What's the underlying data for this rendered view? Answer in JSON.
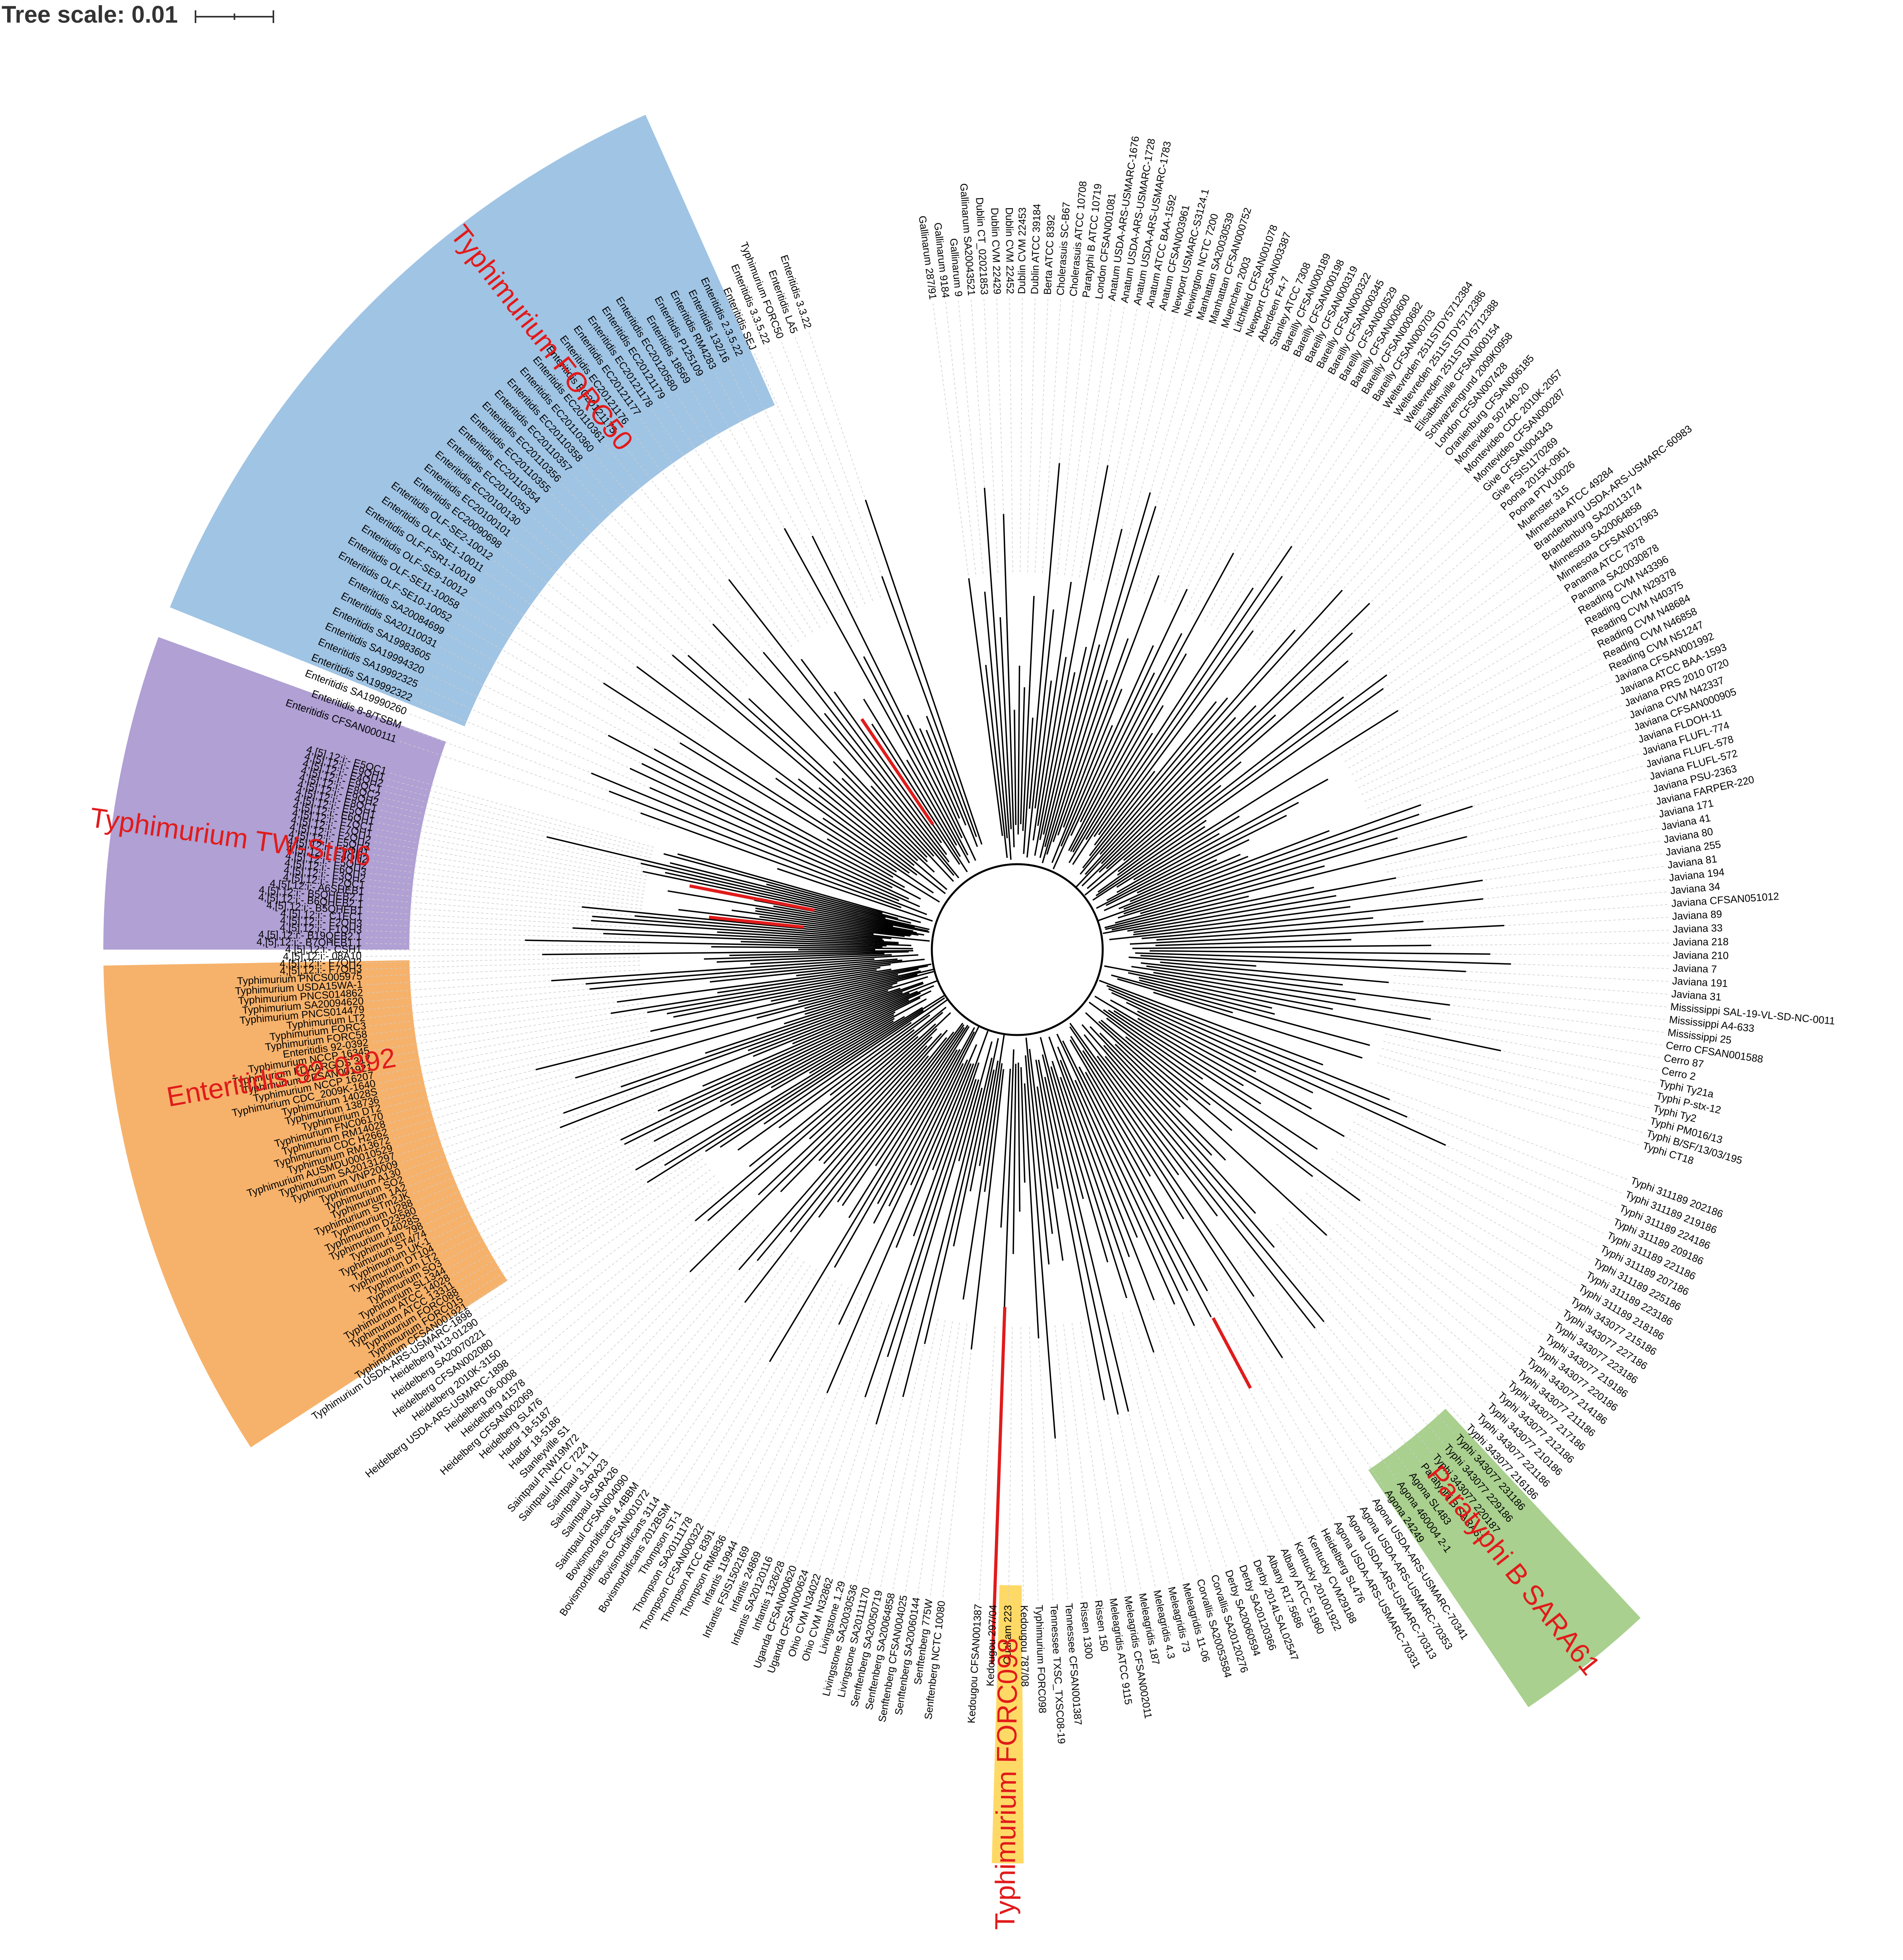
{
  "tree_scale": {
    "label": "Tree scale: 0.01"
  },
  "colors": {
    "blue_clade": "#a0c4e4",
    "purple_clade": "#b0a0d4",
    "orange_clade": "#f6b26b",
    "yellow_clade": "#ffd966",
    "green_clade": "#a9d08e",
    "highlight_branch": "#e11b1b",
    "branch": "#000000",
    "guide": "#cccccc"
  },
  "clade_labels": [
    {
      "text": "Typhimurium FORC50",
      "color": "#e11b1b"
    },
    {
      "text": "Typhimurium TW-Stm6",
      "color": "#e11b1b"
    },
    {
      "text": "Enteritidis 92-0392",
      "color": "#e11b1b"
    },
    {
      "text": "Typhimurium FORC098",
      "color": "#e11b1b"
    },
    {
      "text": "Paratyphi B SARA61",
      "color": "#e11b1b"
    }
  ],
  "sector_leaves": [
    {
      "region": "upper-right",
      "names": [
        "Gallinarum 287/91",
        "Gallinarum 9184",
        "Gallinarum 9",
        "Gallinarum SA20043521",
        "Dublin CT_02021853",
        "Dublin CVM 22429",
        "Dublin CVM 22452",
        "Dublin CVM 22453",
        "Dublin ATCC 39184",
        "Berta ATCC 8392",
        "Cholerasuis SC-B67",
        "Cholerasuis ATCC 10708",
        "Paratyphi B ATCC 10719",
        "London CFSAN001081",
        "Anatum USDA-ARS-USMARC-1676",
        "Anatum USDA-ARS-USMARC-1728",
        "Anatum USDA-ARS-USMARC-1783",
        "Anatum ATCC BAA-1592",
        "Anatum CFSAN003961",
        "Newport USMARC-S3124.1",
        "Newington NCTC 7200",
        "Manhattan SA20030539",
        "Manhattan CFSAN000752",
        "Muenchen 2003",
        "Litchfield CFSAN001078",
        "Newport CFSAN003387",
        "Aberdeen F4-7",
        "Stanley ATCC 7308",
        "Bareilly CFSAN000189",
        "Bareilly CFSAN000198",
        "Bareilly CFSAN000319",
        "Bareilly CFSAN000322",
        "Bareilly CFSAN000345",
        "Bareilly CFSAN000529",
        "Bareilly CFSAN000600",
        "Bareilly CFSAN000682",
        "Bareilly CFSAN000703",
        "Weltevreden 2511STDY5712384",
        "Weltevreden 2511STDY5712386",
        "Weltevreden 2511STDY5712388",
        "Elisabethville CFSAN000154",
        "Schwarzengrund 2009K0958",
        "London CFSAN007428",
        "Oranienburg CFSAN006185",
        "Montevideo 507440-20",
        "Montevideo CDC 2010K-2057",
        "Montevideo CFSAN000287",
        "Give CFSAN004343",
        "Give FSIS1170269",
        "Poona 2015K-0961",
        "Poona PTVU0026",
        "Muenster 315",
        "Minnesota ATCC 49284",
        "Brandenburg USDA-ARS-USMARC-60983",
        "Brandenburg SA20113174",
        "Minnesota SA20064858",
        "Minnesota CFSAN017963",
        "Panama ATCC 7378",
        "Panama SA20030878",
        "Reading CVM N43396",
        "Reading CVM N29378",
        "Reading CVM N40375",
        "Reading CVM N48684",
        "Reading CVM N46858",
        "Reading CVM N51247",
        "Javiana CFSAN001992",
        "Javiana ATCC BAA-1593",
        "Javiana PRS 2010 0720",
        "Javiana CVM N42337",
        "Javiana CFSAN000905",
        "Javiana FLDOH-11",
        "Javiana FLUFL-774",
        "Javiana FLUFL-578",
        "Javiana FLUFL-572",
        "Javiana PSU-2363",
        "Javiana FARPER-220",
        "Javiana 171",
        "Javiana 41",
        "Javiana 80",
        "Javiana 255",
        "Javiana 81",
        "Javiana 194",
        "Javiana 34",
        "Javiana CFSAN051012",
        "Javiana 89",
        "Javiana 33",
        "Javiana 218",
        "Javiana 210",
        "Javiana 7",
        "Javiana 191",
        "Javiana 31",
        "Mississippi SAL-19-VL-SD-NC-0011",
        "Mississippi A4-633",
        "Mississippi 25",
        "Cerro CFSAN001588",
        "Cerro 87",
        "Cerro 2",
        "Typhi Ty21a",
        "Typhi P-stx-12",
        "Typhi Ty2",
        "Typhi PM016/13",
        "Typhi B/SF/13/03/195",
        "Typhi CT18"
      ]
    },
    {
      "region": "lower-right",
      "names": [
        "Typhi 311189 202186",
        "Typhi 311189 219186",
        "Typhi 311189 224186",
        "Typhi 311189 209186",
        "Typhi 311189 221186",
        "Typhi 311189 207186",
        "Typhi 311189 225186",
        "Typhi 311189 223186",
        "Typhi 311189 218186",
        "Typhi 343077 215186",
        "Typhi 343077 227186",
        "Typhi 343077 223186",
        "Typhi 343077 219186",
        "Typhi 343077 220186",
        "Typhi 343077 214186",
        "Typhi 343077 211186",
        "Typhi 343077 217186",
        "Typhi 343077 212186",
        "Typhi 343077 210186",
        "Typhi 343077 221186",
        "Typhi 343077 216186",
        "Typhi 343077 231186",
        "Typhi 343077 229186",
        "Typhi 343077 220187",
        "Paratyphi B SARA61",
        "Agona SL483",
        "Agona 460004 2-1",
        "Agona 24249",
        "Agona USDA-ARS-USMARC-70341",
        "Agona USDA-ARS-USMARC-70353",
        "Agona USDA-ARS-USMARC-70313",
        "Agona USDA-ARS-USMARC-70331",
        "Heidelberg SL476",
        "Kentucky CVM29188",
        "Kentucky 201001922",
        "Albany ATCC 51960",
        "Albany R17.5686",
        "Derby 2014LSAL02547",
        "Derby SA20120366",
        "Derby SA20060594",
        "Corvallis SA20120276",
        "Corvallis SA20053584",
        "Meleagridis 11-06",
        "Meleagridis 73",
        "Meleagridis 4.3",
        "Meleagridis 187",
        "Meleagridis CFSAN002011",
        "Meleagridis ATCC 9115",
        "Rissen 150",
        "Rissen 1300",
        "Tennessee CFSAN001387",
        "Tennessee TXSC_TXSC08-19",
        "Typhimurium FORC098",
        "Kedougou 787/08",
        "Ouakam 223",
        "Kedougou 297/04",
        "Kedougou CFSAN001387"
      ]
    },
    {
      "region": "lower-left",
      "names": [
        "Senftenberg NCTC 10080",
        "Senftenberg 775W",
        "Senftenberg SA20060144",
        "Senftenberg CFSAN004025",
        "Senftenberg SA20064858",
        "Senftenberg SA20050719",
        "Livingstone SA20111170",
        "Livingstone SA20030536",
        "Livingstone 1.29",
        "Ohio CVM N32862",
        "Ohio CVM N34022",
        "Uganda CFSAN000624",
        "Uganda CFSAN000620",
        "Infantis 1326/28",
        "Infantis SA20120116",
        "Infantis 24869",
        "Infantis FSIS1502169",
        "Infantis 119944",
        "Thompson RM6836",
        "Thompson ATCC 8391",
        "Thompson CFSAN000322",
        "Thompson SA20111178",
        "Thompson ST-1",
        "Bovismorbificans 2012BSM",
        "Bovismorbificans 3114",
        "Bovismorbificans CFSAN001072",
        "Bovismorbificans 4.4BBM",
        "Saintpaul CFSAN004090",
        "Saintpaul SARA26",
        "Saintpaul SARA23",
        "Saintpaul 3.1.11",
        "Saintpaul NCTC 7224",
        "Saintpaul FNW19M72",
        "Stanleyville S1",
        "Hadar 18-5186",
        "Hadar 18-5187",
        "Heidelberg SL476",
        "Heidelberg CFSAN002069",
        "Heidelberg 41578",
        "Heidelberg 06-0008",
        "Heidelberg USDA-ARS-USMARC-1898",
        "Heidelberg 2010K-3150",
        "Heidelberg CFSAN002080",
        "Heidelberg SA20070221",
        "Heidelberg N13-01290"
      ]
    },
    {
      "region": "left-orange",
      "names": [
        "Typhimurium USDA-ARS-USMARC-1898",
        "Typhimurium CFSAN001921",
        "Typhimurium FORC015",
        "Typhimurium FORC088",
        "Typhimurium ATCC 13311",
        "Typhimurium ATCC 14028",
        "Typhimurium SL1344",
        "Typhimurium SO3",
        "Typhimurium LT2",
        "Typhimurium DT104",
        "Typhimurium UK-1",
        "Typhimurium ST4/74",
        "Typhimurium 798",
        "Typhimurium 14028S",
        "Typhimurium D23580",
        "Typhimurium U288",
        "Typhimurium STm2JK",
        "Typhimurium 1A2",
        "Typhimurium SO2",
        "Typhimurium A130",
        "Typhimurium VNP20009",
        "Typhimurium SA20131297",
        "Typhimurium AUSMDU00010529",
        "Typhimurium RM13672",
        "Typhimurium CDC H2662",
        "Typhimurium RM14028",
        "Typhimurium FNC06170",
        "Typhimurium DT2",
        "Typhimurium 138736",
        "Typhimurium 14028S",
        "Typhimurium CDC_2009K-1640",
        "Typhimurium NCCP 16207",
        "Typhimurium CFSAN001921",
        "Typhimurium FDAARGOS 317",
        "Typhimurium NCCP 16345",
        "Enteritidis 92-0392",
        "Typhimurium FORC58",
        "Typhimurium FORC3",
        "Typhimurium LT2",
        "Typhimurium PNCS014479",
        "Typhimurium SA20094620",
        "Typhimurium PNCS014862",
        "Typhimurium USDA15WA-1",
        "Typhimurium PNCS005975"
      ]
    },
    {
      "region": "left-purple",
      "names": [
        "4,[5],12:i:- F7QH3",
        "4,[5],12:i:- F7QH2",
        "4,[5],12:i:- 08A10",
        "4,[5],12:i:- CSH1",
        "4,[5],12:i:- B7QHEB1.1",
        "4,[5],12:i:- B19QEB2.1",
        "4,[5],12:i:- F1QH3",
        "4,[5],12:i:- F2QH3",
        "4,[5],12:i:- C1EC1",
        "4,[5],12:i:- B5QHEB1",
        "4,[5],12:i:- B6QHEB2.1",
        "4,[5],12:i:- B5QHEB2.1",
        "4,[5],12:i:- A6SHEB1",
        "4,[5],12:i:- F2QC1",
        "4,[5],12:i:- F3QH2",
        "4,[5],12:i:- F6QH3",
        "4,[5],12:i:- F5QH2",
        "4,[5],12:i:- F4QH2",
        "4,[5],12:i:- F6QH1",
        "4,[5],12:i:- F5QH3",
        "4,[5],12:i:- F2QH2",
        "4,[5],12:i:- F7QH1",
        "4,[5],12:i:- F7QC1",
        "4,[5],12:i:- E6QH1",
        "4,[5],12:i:- E5QH1",
        "4,[5],12:i:- E8QC1",
        "4,[5],12:i:- E9QH2",
        "4,[5],12:i:- E8QC2",
        "4,[5],12:i:- E9QC1",
        "4,[5],12:i:- E4QH2",
        "4,[5],12:i:- E9QH1",
        "4,[5],12:i:- E5QC1"
      ]
    },
    {
      "region": "top-blue",
      "names": [
        "Enteritidis CFSAN000111",
        "Enteritidis 8-8/TSBM",
        "Enteritidis SA19990260",
        "Enteritidis SA19992322",
        "Enteritidis SA19992325",
        "Enteritidis SA19994320",
        "Enteritidis SA19983605",
        "Enteritidis SA20110031",
        "Enteritidis SA20084699",
        "Enteritidis OLF-SE10-10052",
        "Enteritidis OLF-SE11-10058",
        "Enteritidis OLF-SE9-10012",
        "Enteritidis OLF-FSR1-10019",
        "Enteritidis OLF-SE1-10011",
        "Enteritidis OLF-SE2-10012",
        "Enteritidis EC20090698",
        "Enteritidis EC20100101",
        "Enteritidis EC20100130",
        "Enteritidis EC20110353",
        "Enteritidis EC20110354",
        "Enteritidis EC20110355",
        "Enteritidis EC20110356",
        "Enteritidis EC20110357",
        "Enteritidis EC20110358",
        "Enteritidis EC20110360",
        "Enteritidis EC20110361",
        "Enteritidis EC20121175",
        "Enteritidis EC20121176",
        "Enteritidis EC20121177",
        "Enteritidis EC20121178",
        "Enteritidis EC20121179",
        "Enteritidis EC20120580",
        "Enteritidis 18569",
        "Enteritidis P125109",
        "Enteritidis RM4283",
        "Enteritidis 132/16",
        "Enteritidis 2.3.5.22",
        "Enteritidis SEJ",
        "Enteritidis 3.3.5.22",
        "Typhimurium FORC50",
        "Enteritidis LA5",
        "Enteritidis 3.3.22"
      ]
    }
  ]
}
